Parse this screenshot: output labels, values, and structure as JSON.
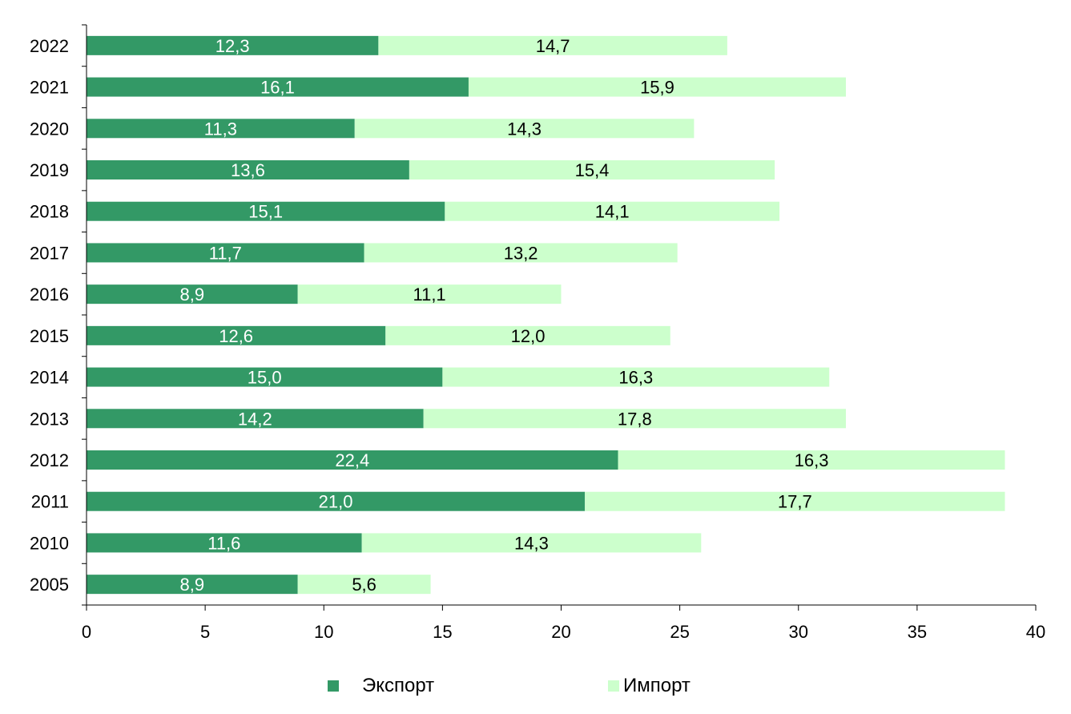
{
  "chart_data": {
    "type": "bar",
    "orientation": "horizontal",
    "stacked": true,
    "categories": [
      "2022",
      "2021",
      "2020",
      "2019",
      "2018",
      "2017",
      "2016",
      "2015",
      "2014",
      "2013",
      "2012",
      "2011",
      "2010",
      "2005"
    ],
    "series": [
      {
        "name": "Экспорт",
        "color": "#339966",
        "values": [
          12.3,
          16.1,
          11.3,
          13.6,
          15.1,
          11.7,
          8.9,
          12.6,
          15.0,
          14.2,
          22.4,
          21.0,
          11.6,
          8.9
        ],
        "labels": [
          "12,3",
          "16,1",
          "11,3",
          "13,6",
          "15,1",
          "11,7",
          "8,9",
          "12,6",
          "15,0",
          "14,2",
          "22,4",
          "21,0",
          "11,6",
          "8,9"
        ]
      },
      {
        "name": "Импорт",
        "color": "#CCFFCC",
        "values": [
          14.7,
          15.9,
          14.3,
          15.4,
          14.1,
          13.2,
          11.1,
          12.0,
          16.3,
          17.8,
          16.3,
          17.7,
          14.3,
          5.6
        ],
        "labels": [
          "14,7",
          "15,9",
          "14,3",
          "15,4",
          "14,1",
          "13,2",
          "11,1",
          "12,0",
          "16,3",
          "17,8",
          "16,3",
          "17,7",
          "14,3",
          "5,6"
        ]
      }
    ],
    "xlim": [
      0,
      40
    ],
    "xticks": [
      "0",
      "5",
      "10",
      "15",
      "20",
      "25",
      "30",
      "35",
      "40"
    ],
    "grid": false,
    "legend_position": "bottom"
  }
}
